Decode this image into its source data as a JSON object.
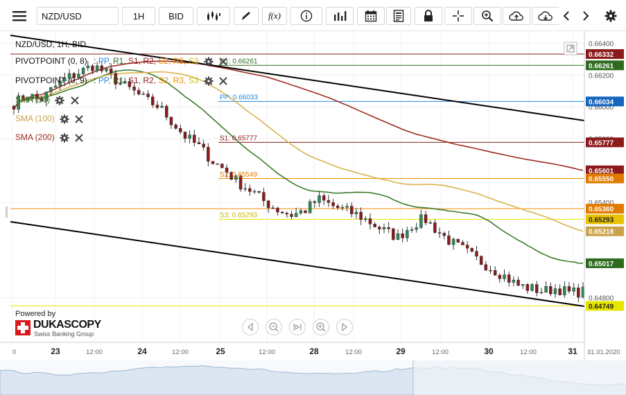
{
  "toolbar": {
    "instrument": "NZD/USD",
    "period": "1H",
    "side": "BID",
    "fx_label": "f(x)"
  },
  "colors": {
    "up": "#2e8b57",
    "down": "#8b1a1a",
    "trend": "#000000",
    "sma50": "#3c7a28",
    "sma100": "#d9b24a",
    "sma200": "#9b2b1f",
    "r1": "#7f1d1d",
    "pp": "#1e88e5",
    "s2": "#f08c00",
    "s3": "#e6e600",
    "grid": "#eeeeee"
  },
  "legend": {
    "title": "NZD/USD, 1H, BID",
    "pivot1": {
      "name": "PIVOTPOINT (0, 8)",
      "items": [
        ":",
        "PP,",
        "R1,",
        "S1,",
        "R2,",
        "S2,",
        "R3,",
        "S3"
      ]
    },
    "pivot2": {
      "name": "PIVOTPOINT (0, 9)",
      "items": [
        ":",
        "PP,",
        "R1,",
        "S1,",
        "R2,",
        "S2,",
        "R3,",
        "S3"
      ]
    },
    "sma50": "SMA (50)",
    "sma100": "SMA (100)",
    "sma200": "SMA (200)"
  },
  "pivot_labels": [
    {
      "id": "r1",
      "text": "R1: 0.66261",
      "value": 0.66261
    },
    {
      "id": "pp",
      "text": "PP: 0.66033",
      "value": 0.66033
    },
    {
      "id": "s1",
      "text": "S1: 0.65777",
      "value": 0.65777
    },
    {
      "id": "s2",
      "text": "S2: 0.65549",
      "value": 0.65549
    },
    {
      "id": "s3",
      "text": "S3: 0.65293",
      "value": 0.65293
    }
  ],
  "price_axis": {
    "ticks": [
      "0.66400",
      "0.66200",
      "0.66000",
      "0.65800",
      "0.65400",
      "0.64800"
    ],
    "tick_values": [
      0.664,
      0.662,
      0.66,
      0.658,
      0.654,
      0.648
    ],
    "ylim": [
      0.6452,
      0.6648
    ],
    "badges": [
      {
        "text": "0.66332",
        "value": 0.66332,
        "bg": "#8b1a1a"
      },
      {
        "text": "0.66261",
        "value": 0.66261,
        "bg": "#2e6b1f"
      },
      {
        "text": "0.66034",
        "value": 0.66034,
        "bg": "#1565c0"
      },
      {
        "text": "0.65777",
        "value": 0.65777,
        "bg": "#8b1a1a"
      },
      {
        "text": "0.65601",
        "value": 0.65601,
        "bg": "#8b1a1a"
      },
      {
        "text": "0.65550",
        "value": 0.6555,
        "bg": "#e07b00"
      },
      {
        "text": "0.65360",
        "value": 0.6536,
        "bg": "#e07b00"
      },
      {
        "text": "0.65293",
        "value": 0.65293,
        "bg": "#e6c200"
      },
      {
        "text": "0.65218",
        "value": 0.65218,
        "bg": "#c9a24a"
      },
      {
        "text": "0.65017",
        "value": 0.65017,
        "bg": "#2e6b1f"
      },
      {
        "text": "0.64749",
        "value": 0.64749,
        "bg": "#e6e600"
      }
    ]
  },
  "time_axis": {
    "labels": [
      "0",
      "23",
      "12:00",
      "24",
      "12:00",
      "25",
      "12:00",
      "28",
      "12:00",
      "29",
      "12:00",
      "30",
      "12:00",
      "31",
      "31.01.2020"
    ]
  },
  "branding": {
    "powered_by": "Powered by",
    "name": "DUKASCOPY",
    "tagline": "Swiss Banking Group"
  },
  "chart_data": {
    "type": "candlestick",
    "title": "NZD/USD, 1H, BID",
    "ylim": [
      0.6452,
      0.6648
    ],
    "horizontal_lines": [
      0.66332,
      0.66261,
      0.66034,
      0.65777,
      0.6555,
      0.6536,
      0.65293,
      0.64749
    ],
    "indicators": [
      "SMA (50)",
      "SMA (100)",
      "SMA (200)",
      "PIVOTPOINT (0, 8)",
      "PIVOTPOINT (0, 9)"
    ],
    "sma_last": {
      "SMA (50)": 0.65017,
      "SMA (100)": 0.65218,
      "SMA (200)": 0.65601
    },
    "close_path": [
      0.6602,
      0.6608,
      0.6604,
      0.6612,
      0.6618,
      0.6622,
      0.6626,
      0.6621,
      0.6615,
      0.661,
      0.6604,
      0.66,
      0.659,
      0.6581,
      0.6575,
      0.6566,
      0.656,
      0.6552,
      0.6547,
      0.654,
      0.6535,
      0.6532,
      0.6535,
      0.6542,
      0.6538,
      0.6535,
      0.6532,
      0.6527,
      0.6522,
      0.6518,
      0.6525,
      0.653,
      0.6522,
      0.6515,
      0.651,
      0.6504,
      0.6499,
      0.6494,
      0.6488,
      0.6486,
      0.6484,
      0.6486,
      0.6483,
      0.6484
    ]
  }
}
